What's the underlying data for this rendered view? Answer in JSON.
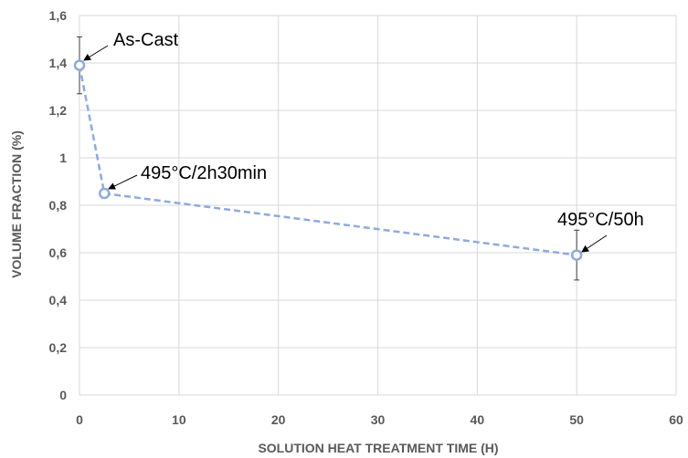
{
  "chart_data": {
    "type": "scatter",
    "xlabel": "SOLUTION HEAT TREATMENT TIME (H)",
    "ylabel": "VOLUME FRACTION (%)",
    "xlim": [
      0,
      60
    ],
    "ylim": [
      0,
      1.6
    ],
    "x_ticks": [
      "0",
      "10",
      "20",
      "30",
      "40",
      "50",
      "60"
    ],
    "y_ticks": [
      "0",
      "0,2",
      "0,4",
      "0,6",
      "0,8",
      "1",
      "1,2",
      "1,4",
      "1,6"
    ],
    "grid": true,
    "line_style": "dashed",
    "series": [
      {
        "x": [
          0,
          2.5,
          50
        ],
        "y": [
          1.39,
          0.85,
          0.59
        ],
        "error": [
          0.12,
          0.02,
          0.105
        ]
      }
    ],
    "annotations": [
      {
        "text": "As-Cast",
        "x": 0,
        "y": 1.39
      },
      {
        "text": "495°C/2h30min",
        "x": 2.5,
        "y": 0.85
      },
      {
        "text": "495°C/50h",
        "x": 50,
        "y": 0.59
      }
    ],
    "colors": {
      "series": "#8faadc",
      "grid": "#d9d9d9",
      "axis_text": "#595959"
    }
  }
}
